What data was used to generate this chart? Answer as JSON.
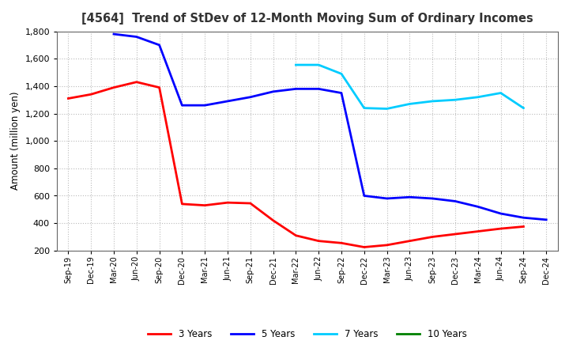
{
  "title": "[4564]  Trend of StDev of 12-Month Moving Sum of Ordinary Incomes",
  "ylabel": "Amount (million yen)",
  "background_color": "#ffffff",
  "grid_color": "#bbbbbb",
  "ylim": [
    200,
    1800
  ],
  "yticks": [
    200,
    400,
    600,
    800,
    1000,
    1200,
    1400,
    1600,
    1800
  ],
  "x_labels": [
    "Sep-19",
    "Dec-19",
    "Mar-20",
    "Jun-20",
    "Sep-20",
    "Dec-20",
    "Mar-21",
    "Jun-21",
    "Sep-21",
    "Dec-21",
    "Mar-22",
    "Jun-22",
    "Sep-22",
    "Dec-22",
    "Mar-23",
    "Jun-23",
    "Sep-23",
    "Dec-23",
    "Mar-24",
    "Jun-24",
    "Sep-24",
    "Dec-24"
  ],
  "series": [
    {
      "name": "3 Years",
      "color": "#ff0000",
      "data_x": [
        0,
        1,
        2,
        3,
        4,
        5,
        6,
        7,
        8,
        9,
        10,
        11,
        12,
        13,
        14,
        15,
        16,
        17,
        18,
        19,
        20
      ],
      "data_y": [
        1310,
        1340,
        1390,
        1430,
        1390,
        540,
        530,
        550,
        545,
        420,
        310,
        270,
        255,
        225,
        240,
        270,
        300,
        320,
        340,
        360,
        375
      ]
    },
    {
      "name": "5 Years",
      "color": "#0000ff",
      "data_x": [
        2,
        3,
        4,
        5,
        6,
        7,
        8,
        9,
        10,
        11,
        12,
        13,
        14,
        15,
        16,
        17,
        18,
        19,
        20,
        21
      ],
      "data_y": [
        1780,
        1760,
        1700,
        1260,
        1260,
        1290,
        1320,
        1360,
        1380,
        1380,
        1350,
        600,
        580,
        590,
        580,
        560,
        520,
        470,
        440,
        425
      ]
    },
    {
      "name": "7 Years",
      "color": "#00ccff",
      "data_x": [
        10,
        11,
        12,
        13,
        14,
        15,
        16,
        17,
        18,
        19,
        20
      ],
      "data_y": [
        1555,
        1555,
        1490,
        1240,
        1235,
        1270,
        1290,
        1300,
        1320,
        1350,
        1240
      ]
    },
    {
      "name": "10 Years",
      "color": "#008000",
      "data_x": [],
      "data_y": []
    }
  ]
}
